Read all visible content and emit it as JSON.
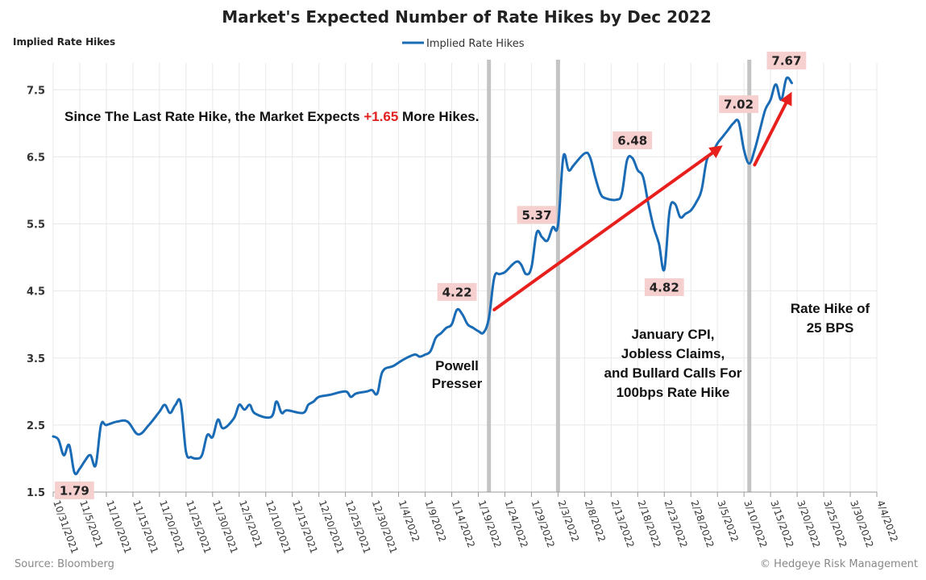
{
  "chart_data": {
    "type": "line",
    "title": "Market's Expected Number of Rate Hikes by Dec 2022",
    "ylabel": "Implied Rate Hikes",
    "legend": "Implied Rate Hikes",
    "legend_position": "top-center",
    "grid": true,
    "ylim": [
      1.5,
      7.9
    ],
    "yticks": [
      "1.5",
      "2.5",
      "3.5",
      "4.5",
      "5.5",
      "6.5",
      "7.5"
    ],
    "xlim": [
      "2021-10-31",
      "2022-04-04"
    ],
    "xticks": [
      "10/31/2021",
      "11/5/2021",
      "11/10/2021",
      "11/15/2021",
      "11/20/2021",
      "11/25/2021",
      "11/30/2021",
      "12/5/2021",
      "12/10/2021",
      "12/15/2021",
      "12/20/2021",
      "12/25/2021",
      "12/30/2021",
      "1/4/2022",
      "1/9/2022",
      "1/14/2022",
      "1/19/2022",
      "1/24/2022",
      "1/29/2022",
      "2/3/2022",
      "2/8/2022",
      "2/13/2022",
      "2/18/2022",
      "2/23/2022",
      "2/28/2022",
      "3/5/2022",
      "3/10/2022",
      "3/15/2022",
      "3/20/2022",
      "3/25/2022",
      "3/30/2022",
      "4/4/2022"
    ],
    "series": [
      {
        "name": "Implied Rate Hikes",
        "color": "#1a6bb5",
        "points": [
          [
            "2021-10-31",
            2.33
          ],
          [
            "2021-11-01",
            2.28
          ],
          [
            "2021-11-02",
            2.05
          ],
          [
            "2021-11-03",
            2.2
          ],
          [
            "2021-11-04",
            1.79
          ],
          [
            "2021-11-05",
            1.85
          ],
          [
            "2021-11-06",
            1.97
          ],
          [
            "2021-11-07",
            2.05
          ],
          [
            "2021-11-08",
            1.9
          ],
          [
            "2021-11-09",
            2.5
          ],
          [
            "2021-11-10",
            2.5
          ],
          [
            "2021-11-12",
            2.55
          ],
          [
            "2021-11-14",
            2.55
          ],
          [
            "2021-11-16",
            2.36
          ],
          [
            "2021-11-18",
            2.5
          ],
          [
            "2021-11-20",
            2.7
          ],
          [
            "2021-11-21",
            2.8
          ],
          [
            "2021-11-22",
            2.68
          ],
          [
            "2021-11-23",
            2.8
          ],
          [
            "2021-11-24",
            2.83
          ],
          [
            "2021-11-25",
            2.1
          ],
          [
            "2021-11-26",
            2.02
          ],
          [
            "2021-11-27",
            2.0
          ],
          [
            "2021-11-28",
            2.05
          ],
          [
            "2021-11-29",
            2.35
          ],
          [
            "2021-11-30",
            2.32
          ],
          [
            "2021-12-01",
            2.58
          ],
          [
            "2021-12-02",
            2.45
          ],
          [
            "2021-12-04",
            2.6
          ],
          [
            "2021-12-05",
            2.8
          ],
          [
            "2021-12-06",
            2.73
          ],
          [
            "2021-12-07",
            2.8
          ],
          [
            "2021-12-08",
            2.67
          ],
          [
            "2021-12-11",
            2.62
          ],
          [
            "2021-12-12",
            2.85
          ],
          [
            "2021-12-13",
            2.68
          ],
          [
            "2021-12-14",
            2.72
          ],
          [
            "2021-12-17",
            2.68
          ],
          [
            "2021-12-18",
            2.8
          ],
          [
            "2021-12-19",
            2.85
          ],
          [
            "2021-12-20",
            2.92
          ],
          [
            "2021-12-22",
            2.95
          ],
          [
            "2021-12-25",
            3.0
          ],
          [
            "2021-12-26",
            2.92
          ],
          [
            "2021-12-27",
            2.97
          ],
          [
            "2021-12-29",
            3.0
          ],
          [
            "2021-12-30",
            3.02
          ],
          [
            "2021-12-31",
            2.97
          ],
          [
            "2022-01-01",
            3.3
          ],
          [
            "2022-01-03",
            3.38
          ],
          [
            "2022-01-05",
            3.48
          ],
          [
            "2022-01-07",
            3.55
          ],
          [
            "2022-01-08",
            3.52
          ],
          [
            "2022-01-09",
            3.55
          ],
          [
            "2022-01-10",
            3.6
          ],
          [
            "2022-01-11",
            3.8
          ],
          [
            "2022-01-12",
            3.87
          ],
          [
            "2022-01-13",
            3.95
          ],
          [
            "2022-01-14",
            4.0
          ],
          [
            "2022-01-15",
            4.22
          ],
          [
            "2022-01-16",
            4.15
          ],
          [
            "2022-01-17",
            4.0
          ],
          [
            "2022-01-18",
            3.95
          ],
          [
            "2022-01-19",
            3.9
          ],
          [
            "2022-01-20",
            3.88
          ],
          [
            "2022-01-21",
            4.1
          ],
          [
            "2022-01-22",
            4.7
          ],
          [
            "2022-01-23",
            4.75
          ],
          [
            "2022-01-24",
            4.78
          ],
          [
            "2022-01-26",
            4.93
          ],
          [
            "2022-01-27",
            4.9
          ],
          [
            "2022-01-28",
            4.75
          ],
          [
            "2022-01-29",
            4.85
          ],
          [
            "2022-01-30",
            5.37
          ],
          [
            "2022-01-31",
            5.3
          ],
          [
            "2022-02-01",
            5.25
          ],
          [
            "2022-02-02",
            5.45
          ],
          [
            "2022-02-03",
            5.48
          ],
          [
            "2022-02-04",
            6.5
          ],
          [
            "2022-02-05",
            6.3
          ],
          [
            "2022-02-06",
            6.38
          ],
          [
            "2022-02-08",
            6.55
          ],
          [
            "2022-02-09",
            6.5
          ],
          [
            "2022-02-10",
            6.2
          ],
          [
            "2022-02-11",
            5.95
          ],
          [
            "2022-02-12",
            5.88
          ],
          [
            "2022-02-14",
            5.86
          ],
          [
            "2022-02-15",
            5.95
          ],
          [
            "2022-02-16",
            6.45
          ],
          [
            "2022-02-17",
            6.48
          ],
          [
            "2022-02-18",
            6.3
          ],
          [
            "2022-02-19",
            6.2
          ],
          [
            "2022-02-20",
            5.8
          ],
          [
            "2022-02-21",
            5.45
          ],
          [
            "2022-02-22",
            5.2
          ],
          [
            "2022-02-23",
            4.82
          ],
          [
            "2022-02-24",
            5.7
          ],
          [
            "2022-02-25",
            5.8
          ],
          [
            "2022-02-26",
            5.6
          ],
          [
            "2022-02-27",
            5.65
          ],
          [
            "2022-02-28",
            5.7
          ],
          [
            "2022-03-01",
            5.82
          ],
          [
            "2022-03-02",
            6.0
          ],
          [
            "2022-03-03",
            6.45
          ],
          [
            "2022-03-04",
            6.55
          ],
          [
            "2022-03-05",
            6.7
          ],
          [
            "2022-03-06",
            6.8
          ],
          [
            "2022-03-07",
            6.9
          ],
          [
            "2022-03-08",
            7.0
          ],
          [
            "2022-03-09",
            7.02
          ],
          [
            "2022-03-10",
            6.6
          ],
          [
            "2022-03-11",
            6.4
          ],
          [
            "2022-03-12",
            6.6
          ],
          [
            "2022-03-13",
            6.9
          ],
          [
            "2022-03-14",
            7.2
          ],
          [
            "2022-03-15",
            7.35
          ],
          [
            "2022-03-16",
            7.58
          ],
          [
            "2022-03-17",
            7.35
          ],
          [
            "2022-03-18",
            7.67
          ],
          [
            "2022-03-19",
            7.6
          ]
        ]
      }
    ],
    "vertical_lines": [
      "2022-01-21",
      "2022-02-03",
      "2022-03-11"
    ],
    "data_labels": [
      {
        "date": "2021-11-04",
        "value": 1.79,
        "text": "1.79",
        "pos": "below"
      },
      {
        "date": "2022-01-15",
        "value": 4.22,
        "text": "4.22",
        "pos": "above"
      },
      {
        "date": "2022-01-30",
        "value": 5.37,
        "text": "5.37",
        "pos": "above"
      },
      {
        "date": "2022-02-17",
        "value": 6.48,
        "text": "6.48",
        "pos": "above"
      },
      {
        "date": "2022-02-23",
        "value": 4.82,
        "text": "4.82",
        "pos": "below"
      },
      {
        "date": "2022-03-09",
        "value": 7.02,
        "text": "7.02",
        "pos": "above"
      },
      {
        "date": "2022-03-18",
        "value": 7.67,
        "text": "7.67",
        "pos": "above"
      }
    ],
    "arrows": [
      {
        "from": [
          "2022-01-22",
          4.22
        ],
        "to": [
          "2022-03-06",
          6.67
        ]
      },
      {
        "from": [
          "2022-03-12",
          6.38
        ],
        "to": [
          "2022-03-19",
          7.47
        ]
      }
    ],
    "annotations": {
      "headline_prefix": "Since The Last Rate Hike, the Market Expects ",
      "headline_value": "+1.65",
      "headline_suffix": " More Hikes.",
      "powell_line1": "Powell",
      "powell_line2": "Presser",
      "cpi_line1": "January CPI,",
      "cpi_line2": "Jobless Claims,",
      "cpi_line3": "and Bullard Calls For",
      "cpi_line4": "100bps Rate Hike",
      "hike_line1": "Rate Hike of",
      "hike_line2": "25 BPS"
    },
    "source": "Source: Bloomberg",
    "credit": "© Hedgeye Risk Management",
    "colors": {
      "line": "#1a6bb5",
      "arrow": "#e8201d",
      "label_bg": "#f6cfcf",
      "vline": "#c4c4c4",
      "grid": "#e8e8e8"
    }
  }
}
